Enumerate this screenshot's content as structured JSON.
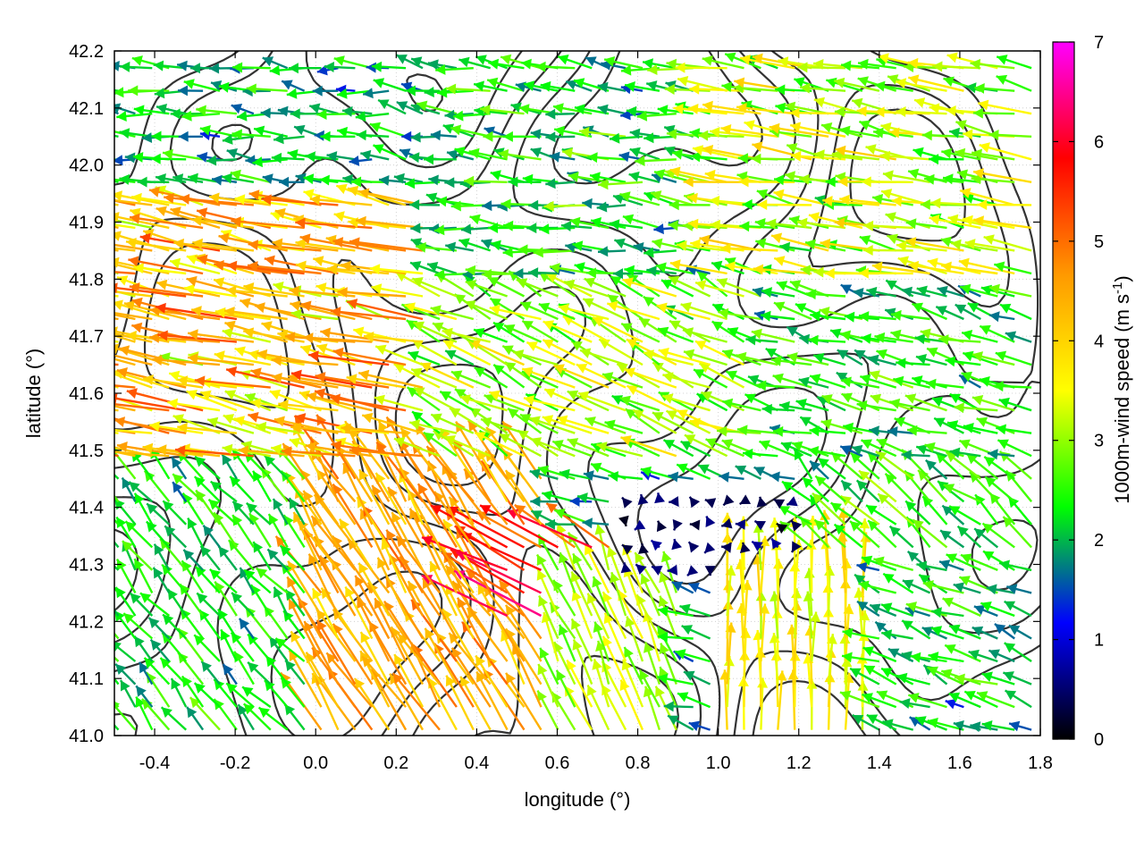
{
  "chart_data": {
    "type": "vector-field",
    "title": "",
    "xlabel": "longitude (°)",
    "ylabel": "latitude (°)",
    "xlim": [
      -0.5,
      1.8
    ],
    "ylim": [
      41.0,
      42.2
    ],
    "xticks": [
      -0.4,
      -0.2,
      0.0,
      0.2,
      0.4,
      0.6,
      0.8,
      1.0,
      1.2,
      1.4,
      1.6,
      1.8
    ],
    "xtick_labels": [
      "-0.4",
      "-0.2",
      "0.0",
      "0.2",
      "0.4",
      "0.6",
      "0.8",
      "1.0",
      "1.2",
      "1.4",
      "1.6",
      "1.8"
    ],
    "yticks": [
      41.0,
      41.1,
      41.2,
      41.3,
      41.4,
      41.5,
      41.6,
      41.7,
      41.8,
      41.9,
      42.0,
      42.1,
      42.2
    ],
    "ytick_labels": [
      "41.0",
      "41.1",
      "41.2",
      "41.3",
      "41.4",
      "41.5",
      "41.6",
      "41.7",
      "41.8",
      "41.9",
      "42.0",
      "42.1",
      "42.2"
    ],
    "grid": true,
    "colorbar": {
      "label_prefix": "1000m-wind speed (m s",
      "label_sup": "-1",
      "label_suffix": ")",
      "range": [
        0,
        7
      ],
      "ticks": [
        0,
        1,
        2,
        3,
        4,
        5,
        6,
        7
      ],
      "tick_labels": [
        "0",
        "1",
        "2",
        "3",
        "4",
        "5",
        "6",
        "7"
      ],
      "colors": [
        "#000000",
        "#0000ff",
        "#00ff00",
        "#ffff00",
        "#ff9900",
        "#ff0000",
        "#ff00ff"
      ]
    },
    "contour_color": "#333333",
    "wind_regions": [
      {
        "lon": [
          -0.5,
          0.3
        ],
        "lat": [
          41.45,
          41.95
        ],
        "u": -4.0,
        "v": 0.8
      },
      {
        "lon": [
          -0.5,
          0.2
        ],
        "lat": [
          41.95,
          42.2
        ],
        "u": -2.0,
        "v": 0.2
      },
      {
        "lon": [
          0.3,
          1.0
        ],
        "lat": [
          41.8,
          42.2
        ],
        "u": -2.2,
        "v": 0.3
      },
      {
        "lon": [
          1.0,
          1.8
        ],
        "lat": [
          41.8,
          42.2
        ],
        "u": -3.0,
        "v": 0.5
      },
      {
        "lon": [
          0.3,
          1.1
        ],
        "lat": [
          41.45,
          41.8
        ],
        "u": -2.6,
        "v": 1.2
      },
      {
        "lon": [
          1.1,
          1.8
        ],
        "lat": [
          41.45,
          41.8
        ],
        "u": -2.2,
        "v": 0.6
      },
      {
        "lon": [
          -0.5,
          0.2
        ],
        "lat": [
          41.0,
          41.45
        ],
        "u": -1.4,
        "v": 1.8
      },
      {
        "lon": [
          0.0,
          0.6
        ],
        "lat": [
          41.0,
          41.45
        ],
        "u": -2.2,
        "v": 3.8
      },
      {
        "lon": [
          0.45,
          0.75
        ],
        "lat": [
          41.2,
          41.35
        ],
        "u": -4.5,
        "v": 2.5
      },
      {
        "lon": [
          0.6,
          0.9
        ],
        "lat": [
          41.0,
          41.3
        ],
        "u": -1.2,
        "v": 2.8
      },
      {
        "lon": [
          0.75,
          1.2
        ],
        "lat": [
          41.25,
          41.42
        ],
        "u": -0.3,
        "v": 0.1
      },
      {
        "lon": [
          1.0,
          1.4
        ],
        "lat": [
          41.0,
          41.3
        ],
        "u": 0.0,
        "v": 3.6
      },
      {
        "lon": [
          1.4,
          1.8
        ],
        "lat": [
          41.0,
          41.3
        ],
        "u": -2.0,
        "v": 0.8
      },
      {
        "lon": [
          1.2,
          1.8
        ],
        "lat": [
          41.3,
          41.45
        ],
        "u": -1.8,
        "v": 1.6
      }
    ],
    "contour_levels": [
      0.9,
      0.5,
      0.1,
      -0.3,
      -0.7
    ]
  }
}
